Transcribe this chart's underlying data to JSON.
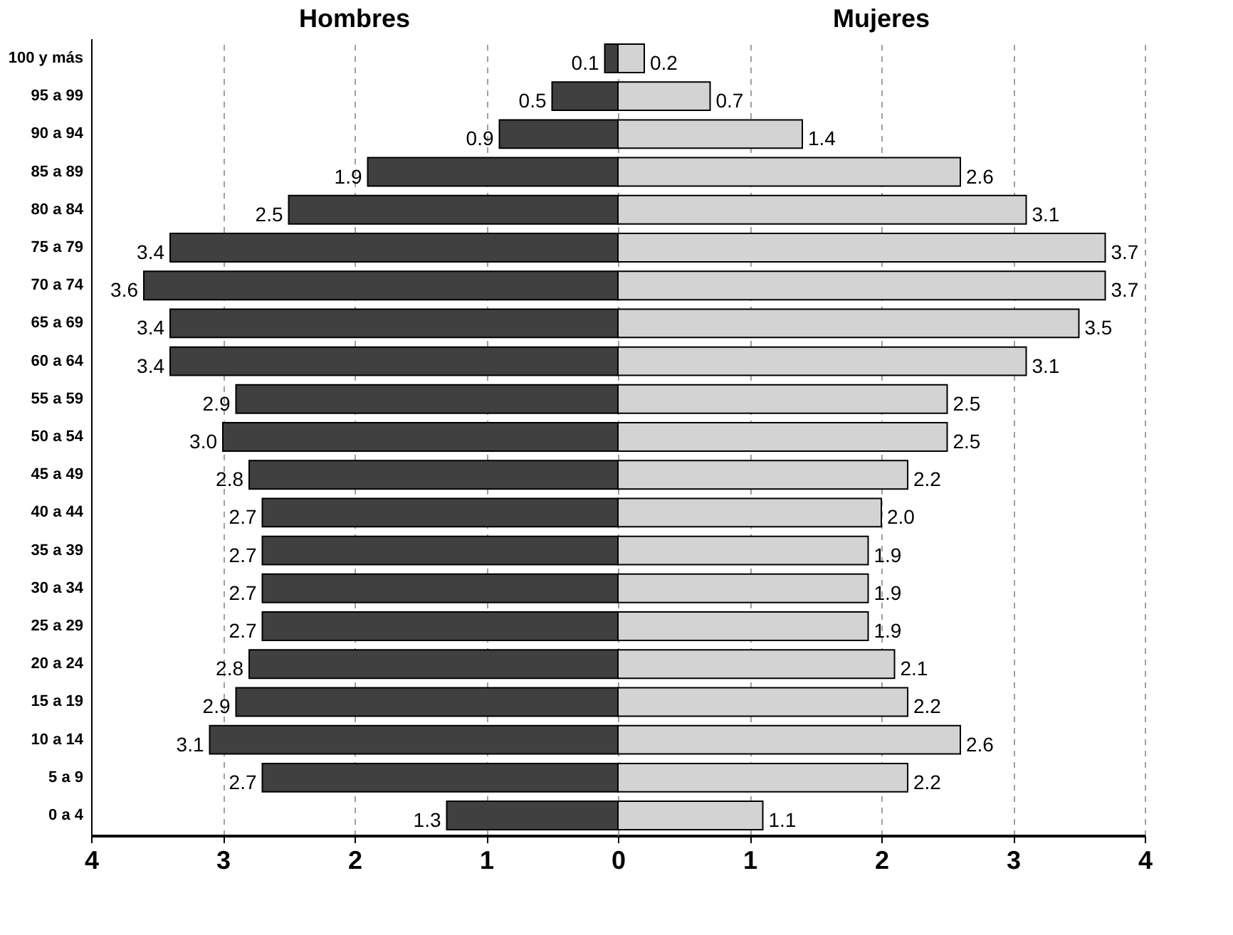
{
  "chart_data": [
    {
      "type": "bar",
      "orientation": "horizontal",
      "title": "Hombres",
      "categories": [
        "100 y más",
        "95 a 99",
        "90 a 94",
        "85 a 89",
        "80 a 84",
        "75 a 79",
        "70 a 74",
        "65 a 69",
        "60 a 64",
        "55 a 59",
        "50 a 54",
        "45 a 49",
        "40 a 44",
        "35 a 39",
        "30 a 34",
        "25 a 29",
        "20 a 24",
        "15 a 19",
        "10 a 14",
        "5 a 9",
        "0 a 4"
      ],
      "values": [
        0.1,
        0.5,
        0.9,
        1.9,
        2.5,
        3.4,
        3.6,
        3.4,
        3.4,
        2.9,
        3.0,
        2.8,
        2.7,
        2.7,
        2.7,
        2.7,
        2.8,
        2.9,
        3.1,
        2.7,
        1.3
      ],
      "colors": [
        "#404040",
        "#404040",
        "#404040",
        "#404040",
        "#404040",
        "#404040",
        "#404040",
        "#404040",
        "#404040",
        "#404040",
        "#404040",
        "#404040",
        "#404040",
        "#404040",
        "#404040",
        "#404040",
        "#404040",
        "#404040",
        "#404040",
        "#404040",
        "#404040"
      ],
      "value_labels": [
        "0.1",
        "0.5",
        "0.9",
        "1.9",
        "2.5",
        "3.4",
        "3.6",
        "3.4",
        "3.4",
        "2.9",
        "3.0",
        "2.8",
        "2.7",
        "2.7",
        "2.7",
        "2.7",
        "2.8",
        "2.9",
        "3.1",
        "2.7",
        "1.3"
      ],
      "xlim": [
        4,
        0
      ],
      "xticks": [
        4,
        3,
        2,
        1,
        0
      ],
      "grid": "x"
    },
    {
      "type": "bar",
      "orientation": "horizontal",
      "title": "Mujeres",
      "categories": [
        "100 y más",
        "95 a 99",
        "90 a 94",
        "85 a 89",
        "80 a 84",
        "75 a 79",
        "70 a 74",
        "65 a 69",
        "60 a 64",
        "55 a 59",
        "50 a 54",
        "45 a 49",
        "40 a 44",
        "35 a 39",
        "30 a 34",
        "25 a 29",
        "20 a 24",
        "15 a 19",
        "10 a 14",
        "5 a 9",
        "0 a 4"
      ],
      "values": [
        0.2,
        0.7,
        1.4,
        2.6,
        3.1,
        3.7,
        3.7,
        3.5,
        3.1,
        2.5,
        2.5,
        2.2,
        2.0,
        1.9,
        1.9,
        1.9,
        2.1,
        2.2,
        2.6,
        2.2,
        1.1
      ],
      "colors": [
        "#d3d3d3",
        "#d3d3d3",
        "#d3d3d3",
        "#d3d3d3",
        "#d3d3d3",
        "#d3d3d3",
        "#d3d3d3",
        "#d3d3d3",
        "#d3d3d3",
        "#d3d3d3",
        "#d3d3d3",
        "#d3d3d3",
        "#d3d3d3",
        "#d3d3d3",
        "#d3d3d3",
        "#d3d3d3",
        "#d3d3d3",
        "#d3d3d3",
        "#d3d3d3",
        "#d3d3d3",
        "#d3d3d3"
      ],
      "value_labels": [
        "0.2",
        "0.7",
        "1.4",
        "2.6",
        "3.1",
        "3.7",
        "3.7",
        "3.5",
        "3.1",
        "2.5",
        "2.5",
        "2.2",
        "2.0",
        "1.9",
        "1.9",
        "1.9",
        "2.1",
        "2.2",
        "2.6",
        "2.2",
        "1.1"
      ],
      "xlim": [
        0,
        4
      ],
      "xticks": [
        {
          "value": 0,
          "label": null
        },
        1,
        2,
        3,
        4
      ],
      "grid": "x",
      "tick_labels": "x"
    }
  ]
}
